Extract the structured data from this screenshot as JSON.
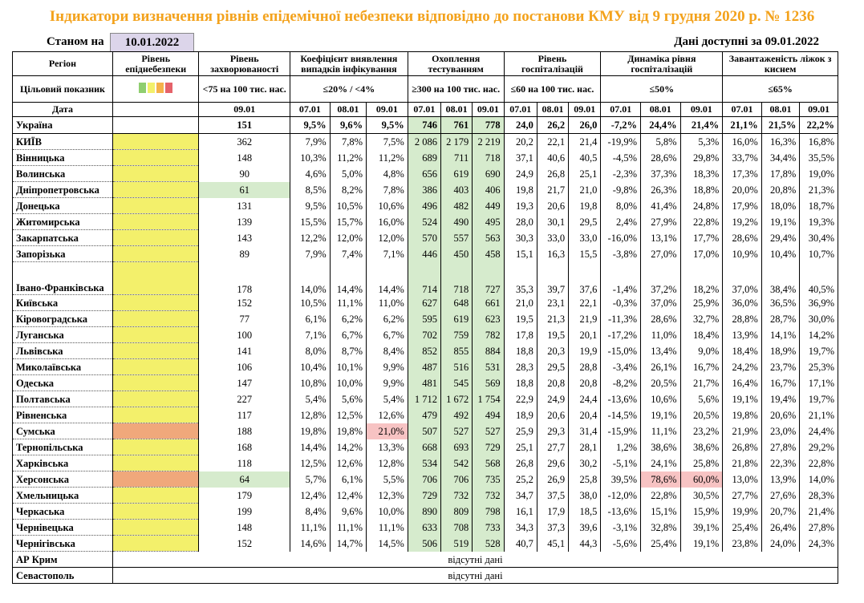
{
  "title": "Індикатори визначення рівнів епідемічної небезпеки відповідно до постанови КМУ від 9 грудня 2020 р. № 1236",
  "status_label": "Станом на",
  "status_date": "10.01.2022",
  "available": "Дані доступні за  09.01.2022",
  "headers": {
    "region": "Регіон",
    "target": "Цільовий показник",
    "date": "Дата",
    "level": "Рівень епіднебезпеки",
    "incidence": "Рівень захворюваності",
    "incidence_target": "<75 на 100 тис. нас.",
    "detection": "Коефіцієнт виявлення випадків інфікування",
    "detection_target": "≤20% / <4%",
    "testing": "Охоплення тестуванням",
    "testing_target": "≥300 на 100 тис. нас.",
    "hosp": "Рівень госпіталізацій",
    "hosp_target": "≤60 на 100 тис. нас.",
    "dyn": "Динаміка рівня госпіталізацій",
    "dyn_target": "≤50%",
    "beds": "Завантаженість ліжок з киснем",
    "beds_target": "≤65%"
  },
  "dates": {
    "d1": "07.01",
    "d2": "08.01",
    "d3": "09.01"
  },
  "ukraine": [
    "Україна",
    "151",
    "9,5%",
    "9,6%",
    "9,5%",
    "746",
    "761",
    "778",
    "24,0",
    "26,2",
    "26,0",
    "-7,2%",
    "24,4%",
    "21,4%",
    "21,1%",
    "21,5%",
    "22,2%"
  ],
  "regions": [
    [
      "КИЇВ",
      "362",
      "7,9%",
      "7,8%",
      "7,5%",
      "2 086",
      "2 179",
      "2 219",
      "20,2",
      "22,1",
      "21,4",
      "-19,9%",
      "5,8%",
      "5,3%",
      "16,0%",
      "16,3%",
      "16,8%"
    ],
    [
      "Вінницька",
      "148",
      "10,3%",
      "11,2%",
      "11,2%",
      "689",
      "711",
      "718",
      "37,1",
      "40,6",
      "40,5",
      "-4,5%",
      "28,6%",
      "29,8%",
      "33,7%",
      "34,4%",
      "35,5%"
    ],
    [
      "Волинська",
      "90",
      "4,6%",
      "5,0%",
      "4,8%",
      "656",
      "619",
      "690",
      "24,9",
      "26,8",
      "25,1",
      "-2,3%",
      "37,3%",
      "18,3%",
      "17,3%",
      "17,8%",
      "19,0%"
    ],
    [
      "Дніпропетровська",
      "61",
      "8,5%",
      "8,2%",
      "7,8%",
      "386",
      "403",
      "406",
      "19,8",
      "21,7",
      "21,0",
      "-9,8%",
      "26,3%",
      "18,8%",
      "20,0%",
      "20,8%",
      "21,3%"
    ],
    [
      "Донецька",
      "131",
      "9,5%",
      "10,5%",
      "10,6%",
      "496",
      "482",
      "449",
      "19,3",
      "20,6",
      "19,8",
      "8,0%",
      "41,4%",
      "24,8%",
      "17,9%",
      "18,0%",
      "18,7%"
    ],
    [
      "Житомирська",
      "139",
      "15,5%",
      "15,7%",
      "16,0%",
      "524",
      "490",
      "495",
      "28,0",
      "30,1",
      "29,5",
      "2,4%",
      "27,9%",
      "22,8%",
      "19,2%",
      "19,1%",
      "19,3%"
    ],
    [
      "Закарпатська",
      "143",
      "12,2%",
      "12,0%",
      "12,0%",
      "570",
      "557",
      "563",
      "30,3",
      "33,0",
      "33,0",
      "-16,0%",
      "13,1%",
      "17,7%",
      "28,6%",
      "29,4%",
      "30,4%"
    ],
    [
      "Запорізька",
      "89",
      "7,9%",
      "7,4%",
      "7,1%",
      "446",
      "450",
      "458",
      "15,1",
      "16,3",
      "15,5",
      "-3,8%",
      "27,0%",
      "17,0%",
      "10,9%",
      "10,4%",
      "10,7%"
    ],
    [
      "Івано-Франківська",
      "178",
      "14,0%",
      "14,4%",
      "14,4%",
      "714",
      "718",
      "727",
      "35,3",
      "39,7",
      "37,6",
      "-1,4%",
      "37,2%",
      "18,2%",
      "37,0%",
      "38,4%",
      "40,5%"
    ],
    [
      "Київська",
      "152",
      "10,5%",
      "11,1%",
      "11,0%",
      "627",
      "648",
      "661",
      "21,0",
      "23,1",
      "22,1",
      "-0,3%",
      "37,0%",
      "25,9%",
      "36,0%",
      "36,5%",
      "36,9%"
    ],
    [
      "Кіровоградська",
      "77",
      "6,1%",
      "6,2%",
      "6,2%",
      "595",
      "619",
      "623",
      "19,5",
      "21,3",
      "21,9",
      "-11,3%",
      "28,6%",
      "32,7%",
      "28,8%",
      "28,7%",
      "30,0%"
    ],
    [
      "Луганська",
      "100",
      "7,1%",
      "6,7%",
      "6,7%",
      "702",
      "759",
      "782",
      "17,8",
      "19,5",
      "20,1",
      "-17,2%",
      "11,0%",
      "18,4%",
      "13,9%",
      "14,1%",
      "14,2%"
    ],
    [
      "Львівська",
      "141",
      "8,0%",
      "8,7%",
      "8,4%",
      "852",
      "855",
      "884",
      "18,8",
      "20,3",
      "19,9",
      "-15,0%",
      "13,4%",
      "9,0%",
      "18,4%",
      "18,9%",
      "19,7%"
    ],
    [
      "Миколаївська",
      "106",
      "10,4%",
      "10,1%",
      "9,9%",
      "487",
      "516",
      "531",
      "28,3",
      "29,5",
      "28,8",
      "-3,4%",
      "26,1%",
      "16,7%",
      "24,2%",
      "23,7%",
      "25,3%"
    ],
    [
      "Одеська",
      "147",
      "10,8%",
      "10,0%",
      "9,9%",
      "481",
      "545",
      "569",
      "18,8",
      "20,8",
      "20,8",
      "-8,2%",
      "20,5%",
      "21,7%",
      "16,4%",
      "16,7%",
      "17,1%"
    ],
    [
      "Полтавська",
      "227",
      "5,4%",
      "5,6%",
      "5,4%",
      "1 712",
      "1 672",
      "1 754",
      "22,9",
      "24,9",
      "24,4",
      "-13,6%",
      "10,6%",
      "5,6%",
      "19,1%",
      "19,4%",
      "19,7%"
    ],
    [
      "Рівненська",
      "117",
      "12,8%",
      "12,5%",
      "12,6%",
      "479",
      "492",
      "494",
      "18,9",
      "20,6",
      "20,4",
      "-14,5%",
      "19,1%",
      "20,5%",
      "19,8%",
      "20,6%",
      "21,1%"
    ],
    [
      "Сумська",
      "188",
      "19,8%",
      "19,8%",
      "21,0%",
      "507",
      "527",
      "527",
      "25,9",
      "29,3",
      "31,4",
      "-15,9%",
      "11,1%",
      "23,2%",
      "21,9%",
      "23,0%",
      "24,4%"
    ],
    [
      "Тернопільська",
      "168",
      "14,4%",
      "14,2%",
      "13,3%",
      "668",
      "693",
      "729",
      "25,1",
      "27,7",
      "28,1",
      "1,2%",
      "38,6%",
      "38,6%",
      "26,8%",
      "27,8%",
      "29,2%"
    ],
    [
      "Харківська",
      "118",
      "12,5%",
      "12,6%",
      "12,8%",
      "534",
      "542",
      "568",
      "26,8",
      "29,6",
      "30,2",
      "-5,1%",
      "24,1%",
      "25,8%",
      "21,8%",
      "22,3%",
      "22,8%"
    ],
    [
      "Херсонська",
      "64",
      "5,7%",
      "6,1%",
      "5,5%",
      "706",
      "706",
      "735",
      "25,2",
      "26,9",
      "25,8",
      "39,5%",
      "78,6%",
      "60,0%",
      "13,0%",
      "13,9%",
      "14,0%"
    ],
    [
      "Хмельницька",
      "179",
      "12,4%",
      "12,4%",
      "12,3%",
      "729",
      "732",
      "732",
      "34,7",
      "37,5",
      "38,0",
      "-12,0%",
      "22,8%",
      "30,5%",
      "27,7%",
      "27,6%",
      "28,3%"
    ],
    [
      "Черкаська",
      "199",
      "8,4%",
      "9,6%",
      "10,0%",
      "890",
      "809",
      "798",
      "16,1",
      "17,9",
      "18,5",
      "-13,6%",
      "15,1%",
      "15,9%",
      "19,9%",
      "20,7%",
      "21,4%"
    ],
    [
      "Чернівецька",
      "148",
      "11,1%",
      "11,1%",
      "11,1%",
      "633",
      "708",
      "733",
      "34,3",
      "37,3",
      "39,6",
      "-3,1%",
      "32,8%",
      "39,1%",
      "25,4%",
      "26,4%",
      "27,8%"
    ],
    [
      "Чернігівська",
      "152",
      "14,6%",
      "14,7%",
      "14,5%",
      "506",
      "519",
      "528",
      "40,7",
      "45,1",
      "44,3",
      "-5,6%",
      "25,4%",
      "19,1%",
      "23,8%",
      "24,0%",
      "24,3%"
    ]
  ],
  "missing": [
    {
      "region": "АР Крим",
      "text": "відсутні дані"
    },
    {
      "region": "Севастополь",
      "text": "відсутні дані"
    }
  ],
  "colors": {
    "yellow": "#f3f06b",
    "orange": "#f0a87b",
    "green": "#d6ebcd",
    "pink": "#f7c3c3"
  },
  "level_swatches": [
    "#8fce6f",
    "#f3f06b",
    "#f5b14a",
    "#e5626a"
  ]
}
